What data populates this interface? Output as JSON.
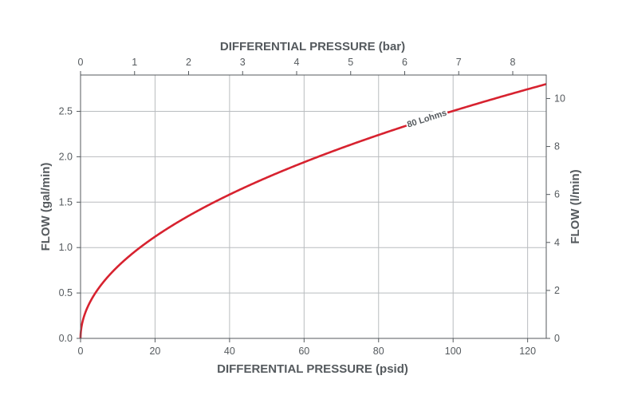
{
  "chart_data": {
    "type": "line",
    "xlabel_bottom": "DIFFERENTIAL PRESSURE (psid)",
    "xlabel_top": "DIFFERENTIAL PRESSURE (bar)",
    "ylabel_left": "FLOW (gal/min)",
    "ylabel_right": "FLOW (l/min)",
    "xlim_psid": [
      0,
      125
    ],
    "ylim_gpm": [
      0,
      2.9
    ],
    "xlim_bar": [
      0,
      8.62
    ],
    "ylim_lpm": [
      0,
      10.98
    ],
    "x_ticks_psid": [
      0,
      20,
      40,
      60,
      80,
      100,
      120
    ],
    "y_ticks_gpm": [
      "0.0",
      "0.5",
      "1.0",
      "1.5",
      "2.0",
      "2.5"
    ],
    "x_ticks_bar": [
      0,
      1,
      2,
      3,
      4,
      5,
      6,
      7,
      8
    ],
    "y_ticks_lpm": [
      0,
      2,
      4,
      6,
      8,
      10
    ],
    "grid": true,
    "series": [
      {
        "name": "80 Lohms",
        "color": "#d7222f",
        "x": [
          0,
          1,
          2,
          5,
          10,
          15,
          20,
          25,
          30,
          40,
          50,
          60,
          70,
          80,
          90,
          100,
          110,
          120,
          125
        ],
        "y": [
          0,
          0.25,
          0.35,
          0.56,
          0.79,
          0.97,
          1.12,
          1.25,
          1.37,
          1.58,
          1.77,
          1.94,
          2.09,
          2.24,
          2.37,
          2.5,
          2.62,
          2.74,
          2.8
        ]
      }
    ],
    "annotation": {
      "text": "80 Lohms",
      "x": 93,
      "y": 2.33
    }
  }
}
